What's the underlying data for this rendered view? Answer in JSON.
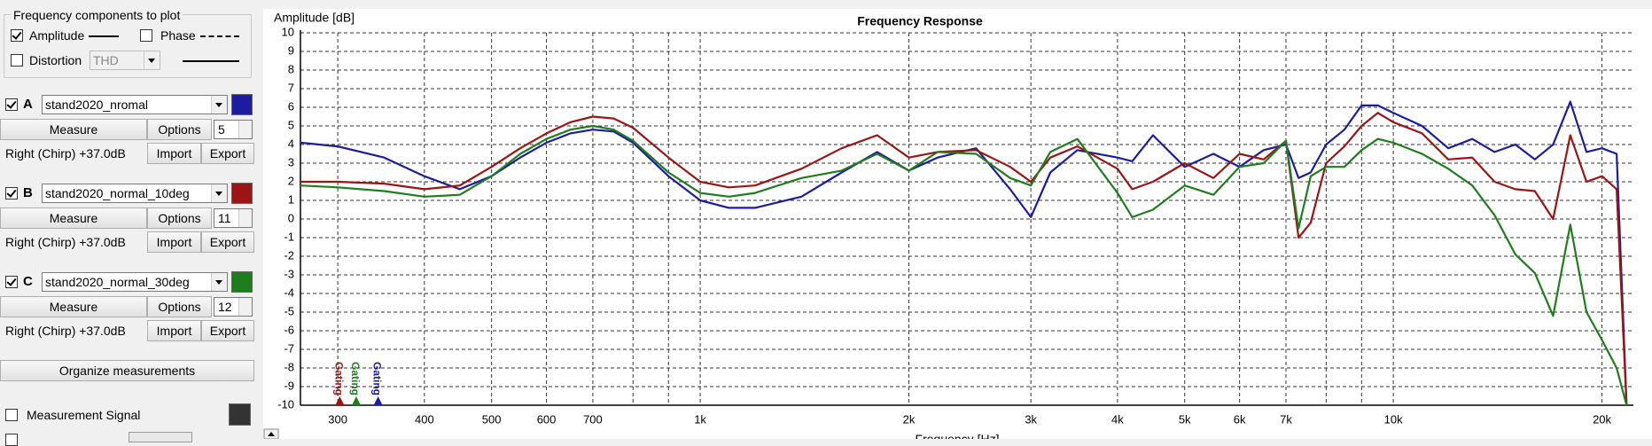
{
  "panel": {
    "group_title": "Frequency components to plot",
    "amplitude": {
      "label": "Amplitude",
      "checked": true
    },
    "phase": {
      "label": "Phase",
      "checked": false
    },
    "distortion": {
      "label": "Distortion",
      "checked": false,
      "type": "THD"
    },
    "measurements": [
      {
        "letter": "A",
        "name": "stand2020_nromal",
        "checked": true,
        "measure": "Measure",
        "options": "Options",
        "count": 5,
        "channel": "Right (Chirp) +37.0dB",
        "import": "Import",
        "export": "Export"
      },
      {
        "letter": "B",
        "name": "stand2020_normal_10deg",
        "checked": true,
        "measure": "Measure",
        "options": "Options",
        "count": 11,
        "channel": "Right (Chirp) +37.0dB",
        "import": "Import",
        "export": "Export"
      },
      {
        "letter": "C",
        "name": "stand2020_normal_30deg",
        "checked": true,
        "measure": "Measure",
        "options": "Options",
        "count": 12,
        "channel": "Right (Chirp) +37.0dB",
        "import": "Import",
        "export": "Export"
      }
    ],
    "organize": "Organize measurements",
    "signal": {
      "label": "Measurement Signal",
      "checked": false,
      "color": "#333333"
    }
  },
  "chart_data": {
    "type": "line",
    "title": "Frequency Response",
    "ylabel": "Amplitude [dB]",
    "xlabel": "Frequency [Hz]",
    "xscale": "log",
    "grid": true,
    "xlim": [
      265,
      22200
    ],
    "ylim": [
      -10,
      10
    ],
    "yticks": [
      -10,
      -9,
      -8,
      -7,
      -6,
      -5,
      -4,
      -3,
      -2,
      -1,
      0,
      1,
      2,
      3,
      4,
      5,
      6,
      7,
      8,
      9,
      10
    ],
    "xticks": [
      300,
      400,
      500,
      600,
      700,
      {
        "value": 1000,
        "label": "1k"
      },
      {
        "value": 2000,
        "label": "2k"
      },
      {
        "value": 3000,
        "label": "3k"
      },
      {
        "value": 4000,
        "label": "4k"
      },
      {
        "value": 5000,
        "label": "5k"
      },
      {
        "value": 6000,
        "label": "6k"
      },
      {
        "value": 7000,
        "label": "7k"
      },
      {
        "value": 10000,
        "label": "10k"
      },
      {
        "value": 20000,
        "label": "20k"
      }
    ],
    "xminor": [
      800,
      900,
      8000,
      9000
    ],
    "x": [
      265,
      300,
      350,
      400,
      450,
      500,
      550,
      600,
      650,
      700,
      750,
      800,
      900,
      1000,
      1100,
      1200,
      1400,
      1600,
      1800,
      2000,
      2200,
      2500,
      2800,
      3000,
      3200,
      3500,
      4000,
      4200,
      4500,
      5000,
      5500,
      6000,
      6500,
      7000,
      7300,
      7600,
      8000,
      8500,
      9000,
      9500,
      10000,
      11000,
      12000,
      13000,
      14000,
      15000,
      16000,
      17000,
      18000,
      19000,
      20000,
      21000,
      21700
    ],
    "series": [
      {
        "color": "#1c1ca0",
        "values": [
          4.1,
          3.9,
          3.3,
          2.3,
          1.6,
          2.3,
          3.3,
          4.1,
          4.6,
          4.8,
          4.7,
          4.1,
          2.3,
          1.0,
          0.6,
          0.6,
          1.2,
          2.5,
          3.6,
          2.6,
          3.3,
          3.8,
          1.6,
          0.1,
          2.5,
          3.7,
          3.3,
          3.1,
          4.5,
          2.8,
          3.5,
          2.8,
          3.7,
          4.0,
          2.2,
          2.5,
          4.0,
          4.8,
          6.1,
          6.1,
          5.7,
          5.0,
          3.8,
          4.3,
          3.6,
          4.0,
          3.2,
          4.0,
          6.3,
          3.6,
          3.8,
          3.5,
          -10
        ]
      },
      {
        "color": "#9c1414",
        "values": [
          2.0,
          2.0,
          1.9,
          1.6,
          1.8,
          2.8,
          3.8,
          4.6,
          5.2,
          5.5,
          5.4,
          4.9,
          3.3,
          2.0,
          1.7,
          1.8,
          2.7,
          3.8,
          4.5,
          3.3,
          3.6,
          3.7,
          2.8,
          2.0,
          3.3,
          3.9,
          2.7,
          1.6,
          2.0,
          3.0,
          2.2,
          3.5,
          3.2,
          4.2,
          -1.0,
          -0.2,
          3.0,
          3.9,
          5.0,
          5.7,
          5.2,
          4.6,
          3.2,
          3.3,
          2.0,
          1.6,
          1.5,
          0.0,
          4.5,
          2.0,
          2.3,
          1.6,
          -10
        ]
      },
      {
        "color": "#1e7e1e",
        "values": [
          1.8,
          1.7,
          1.5,
          1.2,
          1.3,
          2.3,
          3.5,
          4.3,
          4.8,
          5.0,
          4.8,
          4.2,
          2.5,
          1.4,
          1.2,
          1.4,
          2.2,
          2.6,
          3.5,
          2.6,
          3.6,
          3.5,
          2.2,
          1.8,
          3.6,
          4.3,
          1.4,
          0.1,
          0.5,
          1.8,
          1.3,
          2.8,
          3.0,
          4.2,
          -0.5,
          2.3,
          2.8,
          2.8,
          3.7,
          4.3,
          4.1,
          3.5,
          2.7,
          1.8,
          0.2,
          -1.9,
          -2.9,
          -5.2,
          -0.3,
          -5.0,
          -6.5,
          -8.0,
          -10
        ]
      }
    ],
    "gating": [
      {
        "label": "Gating",
        "x": 302,
        "color": "#9c1414"
      },
      {
        "label": "Gating",
        "x": 319,
        "color": "#1e7e1e"
      },
      {
        "label": "Gating",
        "x": 343,
        "color": "#1c1ca0"
      }
    ]
  }
}
